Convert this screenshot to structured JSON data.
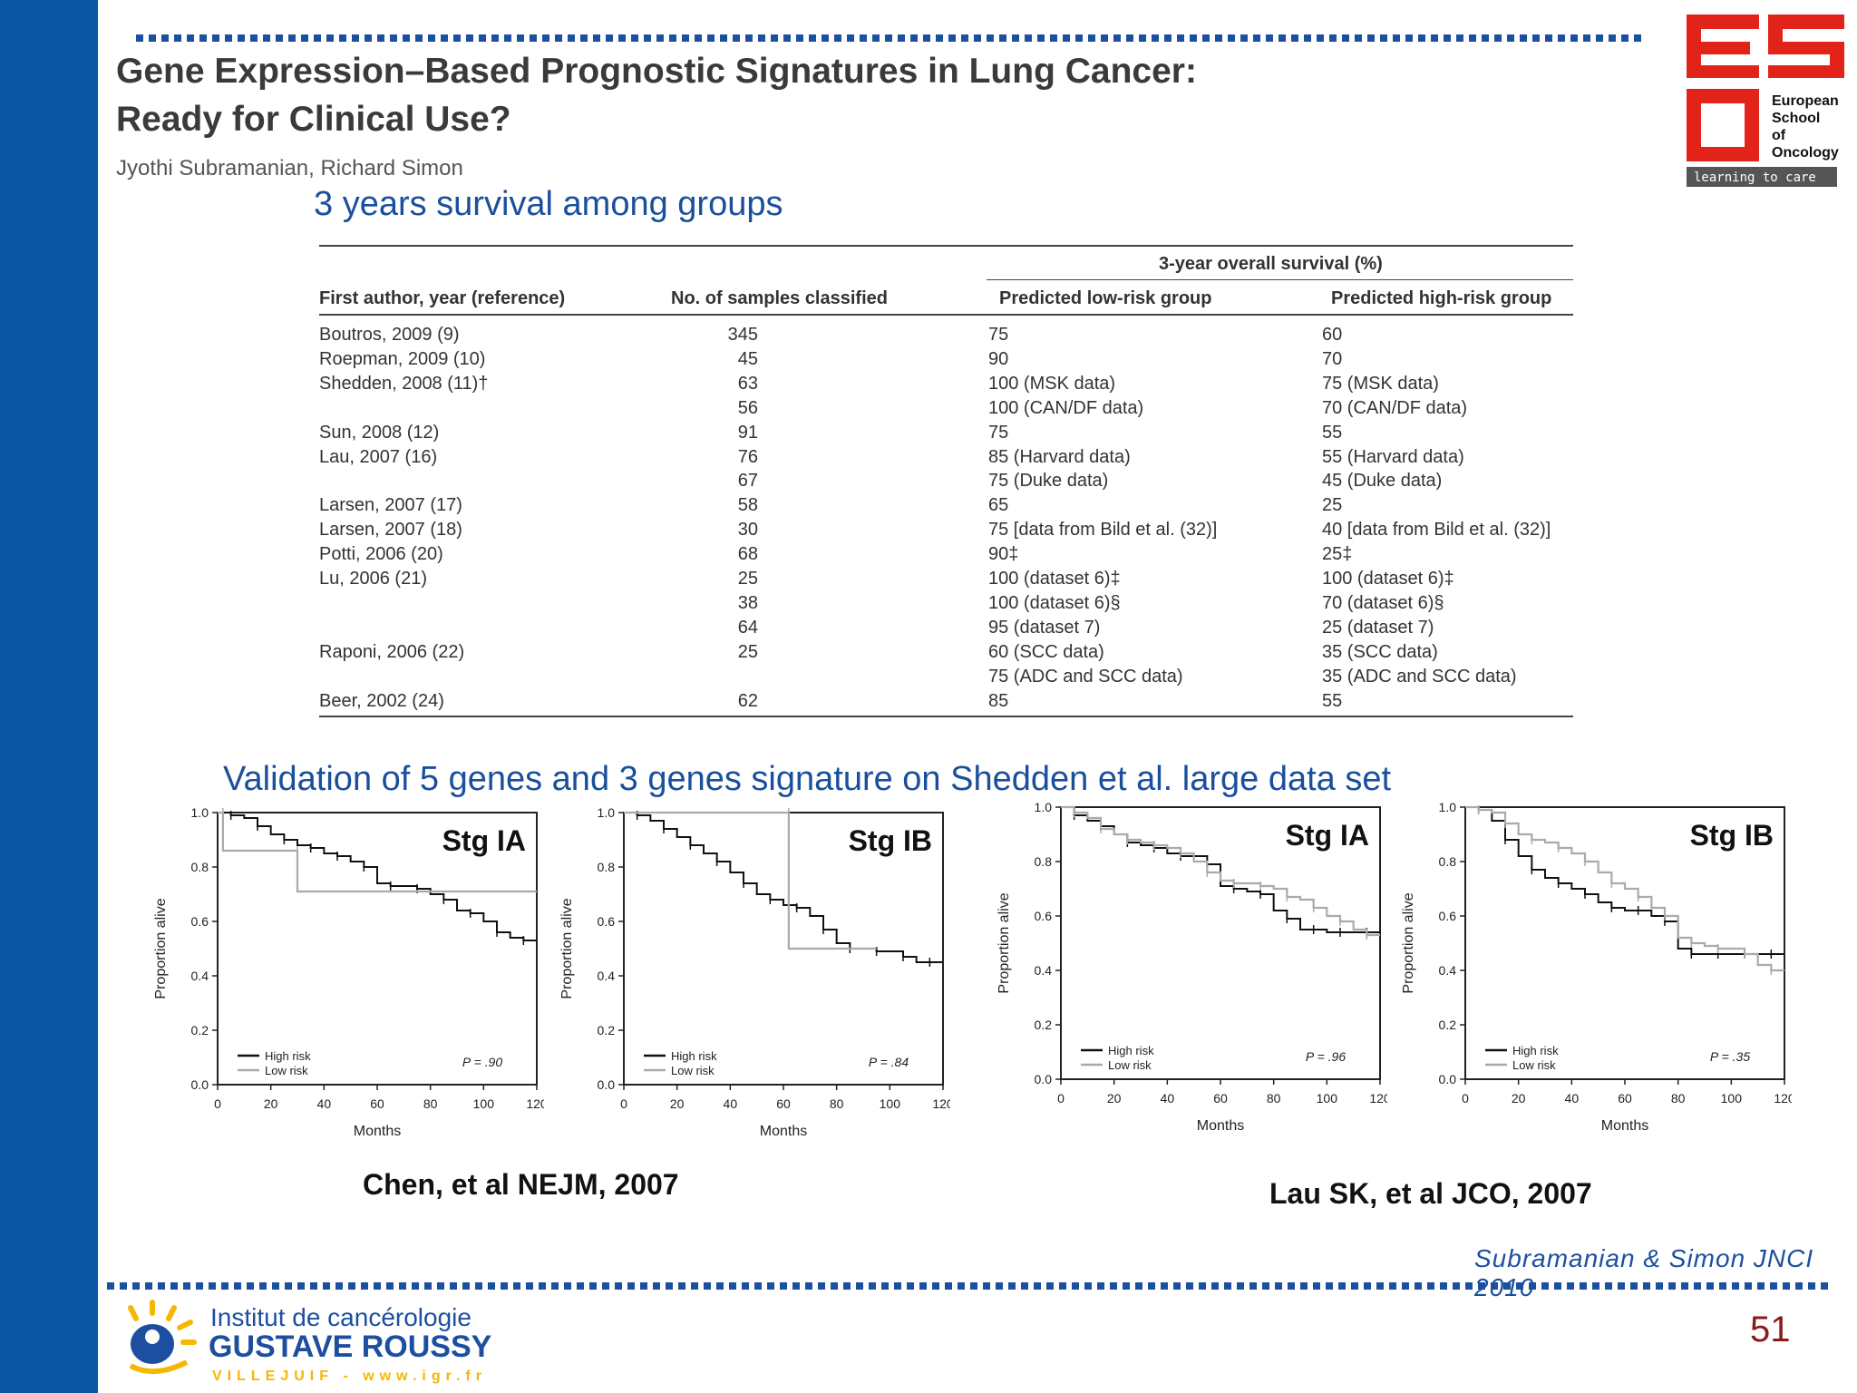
{
  "paper": {
    "title_line1": "Gene Expression–Based Prognostic Signatures in Lung Cancer:",
    "title_line2": "Ready for Clinical Use?",
    "authors": "Jyothi Subramanian, Richard Simon"
  },
  "table_heading": "3 years survival among groups",
  "table": {
    "group_header": "3-year overall survival (%)",
    "headers": [
      "First author, year (reference)",
      "No. of samples classified",
      "Predicted low-risk group",
      "Predicted high-risk group"
    ],
    "rows": [
      {
        "author": "Boutros, 2009 (9)",
        "n": "345",
        "low": "75",
        "high": "60"
      },
      {
        "author": "Roepman, 2009 (10)",
        "n": "45",
        "low": "90",
        "high": "70"
      },
      {
        "author": "Shedden, 2008 (11)†",
        "n": "63",
        "low": "100 (MSK data)",
        "high": "75 (MSK data)"
      },
      {
        "author": "",
        "n": "56",
        "low": "100 (CAN/DF data)",
        "high": "70 (CAN/DF data)"
      },
      {
        "author": "Sun, 2008 (12)",
        "n": "91",
        "low": "75",
        "high": "55"
      },
      {
        "author": "Lau, 2007 (16)",
        "n": "76",
        "low": "85 (Harvard data)",
        "high": "55 (Harvard data)"
      },
      {
        "author": "",
        "n": "67",
        "low": "75 (Duke data)",
        "high": "45 (Duke data)"
      },
      {
        "author": "Larsen, 2007 (17)",
        "n": "58",
        "low": "65",
        "high": "25"
      },
      {
        "author": "Larsen, 2007 (18)",
        "n": "30",
        "low": "75 [data from Bild et al. (32)]",
        "high": "40 [data from Bild et al. (32)]"
      },
      {
        "author": "Potti, 2006 (20)",
        "n": "68",
        "low": "90‡",
        "high": "25‡"
      },
      {
        "author": "Lu, 2006 (21)",
        "n": "25",
        "low": "100 (dataset 6)‡",
        "high": "100 (dataset 6)‡"
      },
      {
        "author": "",
        "n": "38",
        "low": "100 (dataset 6)§",
        "high": "70 (dataset 6)§"
      },
      {
        "author": "",
        "n": "64",
        "low": "95 (dataset 7)",
        "high": "25 (dataset 7)"
      },
      {
        "author": "Raponi, 2006 (22)",
        "n": "25",
        "low": "60 (SCC data)",
        "high": "35 (SCC data)"
      },
      {
        "author": "",
        "n": "",
        "low": "75 (ADC and SCC data)",
        "high": "35 (ADC and SCC data)"
      },
      {
        "author": "Beer, 2002 (24)",
        "n": "62",
        "low": "85",
        "high": "55"
      }
    ]
  },
  "validation_heading": "Validation of 5 genes and 3 genes signature on Shedden et al. large data set",
  "citations": {
    "chen": "Chen, et al NEJM, 2007",
    "lau": "Lau SK, et al JCO, 2007"
  },
  "signature_ref": "Subramanian & Simon JNCI 2010",
  "slide_number": "51",
  "logos": {
    "esso": {
      "line1": "European",
      "line2": "School",
      "line3": "of",
      "line4": "Oncology",
      "tagline": "learning to care",
      "color": "#e2231a"
    },
    "igr": {
      "line1": "Institut de cancérologie",
      "line2": "GUSTAVE ROUSSY",
      "line3": "VILLEJUIF - www.igr.fr",
      "color": "#1d4fa0",
      "accent": "#f5b800"
    }
  },
  "chart_data": [
    {
      "type": "line",
      "title": "Stg IA",
      "xlabel": "Months",
      "ylabel": "Proportion alive",
      "xlim": [
        0,
        120
      ],
      "ylim": [
        0,
        1
      ],
      "xticks": [
        "0",
        "20",
        "40",
        "60",
        "80",
        "100",
        "120"
      ],
      "yticks": [
        "0.0",
        "0.2",
        "0.4",
        "0.6",
        "0.8",
        "1.0"
      ],
      "annotation": "P = .90",
      "legend": "bottom-left",
      "series": [
        {
          "name": "High risk",
          "color": "#111111",
          "x": [
            0,
            5,
            10,
            15,
            20,
            25,
            30,
            35,
            40,
            45,
            50,
            55,
            60,
            65,
            70,
            75,
            80,
            85,
            90,
            95,
            100,
            105,
            110,
            115,
            120
          ],
          "y": [
            1.0,
            0.99,
            0.98,
            0.95,
            0.92,
            0.9,
            0.88,
            0.87,
            0.85,
            0.84,
            0.82,
            0.8,
            0.74,
            0.73,
            0.73,
            0.72,
            0.7,
            0.68,
            0.64,
            0.63,
            0.6,
            0.56,
            0.54,
            0.53,
            0.53
          ]
        },
        {
          "name": "Low risk",
          "color": "#aaaaaa",
          "x": [
            0,
            2,
            2,
            30,
            30,
            120
          ],
          "y": [
            1.0,
            1.0,
            0.86,
            0.86,
            0.71,
            0.71
          ]
        }
      ]
    },
    {
      "type": "line",
      "title": "Stg IB",
      "xlabel": "Months",
      "ylabel": "Proportion alive",
      "xlim": [
        0,
        120
      ],
      "ylim": [
        0,
        1
      ],
      "xticks": [
        "0",
        "20",
        "40",
        "60",
        "80",
        "100",
        "120"
      ],
      "yticks": [
        "0.0",
        "0.2",
        "0.4",
        "0.6",
        "0.8",
        "1.0"
      ],
      "annotation": "P = .84",
      "legend": "bottom-left",
      "series": [
        {
          "name": "High risk",
          "color": "#111111",
          "x": [
            0,
            5,
            10,
            15,
            20,
            25,
            30,
            35,
            40,
            45,
            50,
            55,
            60,
            65,
            70,
            75,
            80,
            85,
            90,
            95,
            100,
            105,
            110,
            115,
            120
          ],
          "y": [
            1.0,
            0.99,
            0.97,
            0.94,
            0.91,
            0.88,
            0.85,
            0.82,
            0.78,
            0.74,
            0.7,
            0.68,
            0.66,
            0.65,
            0.62,
            0.57,
            0.52,
            0.5,
            0.5,
            0.49,
            0.49,
            0.47,
            0.45,
            0.45,
            0.45
          ]
        },
        {
          "name": "Low risk",
          "color": "#aaaaaa",
          "x": [
            0,
            62,
            62,
            95
          ],
          "y": [
            1.0,
            1.0,
            0.5,
            0.5
          ]
        }
      ]
    },
    {
      "type": "line",
      "title": "Stg IA",
      "xlabel": "Months",
      "ylabel": "Proportion alive",
      "xlim": [
        0,
        120
      ],
      "ylim": [
        0,
        1
      ],
      "xticks": [
        "0",
        "20",
        "40",
        "60",
        "80",
        "100",
        "120"
      ],
      "yticks": [
        "0.0",
        "0.2",
        "0.4",
        "0.6",
        "0.8",
        "1.0"
      ],
      "annotation": "P = .96",
      "legend": "bottom-left",
      "series": [
        {
          "name": "High risk",
          "color": "#111111",
          "x": [
            0,
            5,
            10,
            15,
            20,
            25,
            30,
            35,
            40,
            45,
            50,
            55,
            60,
            65,
            70,
            75,
            80,
            85,
            90,
            95,
            100,
            105,
            110,
            115,
            120
          ],
          "y": [
            1.0,
            0.97,
            0.95,
            0.93,
            0.9,
            0.87,
            0.86,
            0.85,
            0.83,
            0.82,
            0.82,
            0.79,
            0.71,
            0.7,
            0.69,
            0.68,
            0.62,
            0.59,
            0.55,
            0.55,
            0.54,
            0.54,
            0.54,
            0.54,
            0.54
          ]
        },
        {
          "name": "Low risk",
          "color": "#aaaaaa",
          "x": [
            0,
            5,
            10,
            15,
            20,
            25,
            30,
            35,
            40,
            45,
            50,
            55,
            60,
            65,
            70,
            75,
            80,
            85,
            90,
            95,
            100,
            105,
            110,
            115,
            120
          ],
          "y": [
            1.0,
            0.98,
            0.96,
            0.92,
            0.9,
            0.88,
            0.87,
            0.86,
            0.85,
            0.83,
            0.8,
            0.76,
            0.73,
            0.72,
            0.72,
            0.71,
            0.7,
            0.67,
            0.66,
            0.63,
            0.6,
            0.58,
            0.55,
            0.53,
            0.53
          ]
        }
      ]
    },
    {
      "type": "line",
      "title": "Stg IB",
      "xlabel": "Months",
      "ylabel": "Proportion alive",
      "xlim": [
        0,
        120
      ],
      "ylim": [
        0,
        1
      ],
      "xticks": [
        "0",
        "20",
        "40",
        "60",
        "80",
        "100",
        "120"
      ],
      "yticks": [
        "0.0",
        "0.2",
        "0.4",
        "0.6",
        "0.8",
        "1.0"
      ],
      "annotation": "P = .35",
      "legend": "bottom-left",
      "series": [
        {
          "name": "High risk",
          "color": "#111111",
          "x": [
            0,
            5,
            10,
            15,
            20,
            25,
            30,
            35,
            40,
            45,
            50,
            55,
            60,
            65,
            70,
            75,
            80,
            85,
            90,
            95,
            100,
            105,
            110,
            115,
            120
          ],
          "y": [
            1.0,
            0.99,
            0.95,
            0.88,
            0.82,
            0.77,
            0.74,
            0.72,
            0.7,
            0.68,
            0.65,
            0.63,
            0.62,
            0.62,
            0.6,
            0.58,
            0.48,
            0.46,
            0.46,
            0.46,
            0.46,
            0.46,
            0.46,
            0.46,
            0.46
          ]
        },
        {
          "name": "Low risk",
          "color": "#aaaaaa",
          "x": [
            0,
            5,
            10,
            15,
            20,
            25,
            30,
            35,
            40,
            45,
            50,
            55,
            60,
            65,
            70,
            75,
            80,
            85,
            90,
            95,
            100,
            105,
            110,
            115,
            120
          ],
          "y": [
            1.0,
            0.99,
            0.98,
            0.94,
            0.9,
            0.88,
            0.87,
            0.85,
            0.83,
            0.8,
            0.76,
            0.72,
            0.7,
            0.67,
            0.63,
            0.6,
            0.52,
            0.5,
            0.49,
            0.48,
            0.48,
            0.46,
            0.42,
            0.4,
            0.4
          ]
        }
      ]
    }
  ]
}
